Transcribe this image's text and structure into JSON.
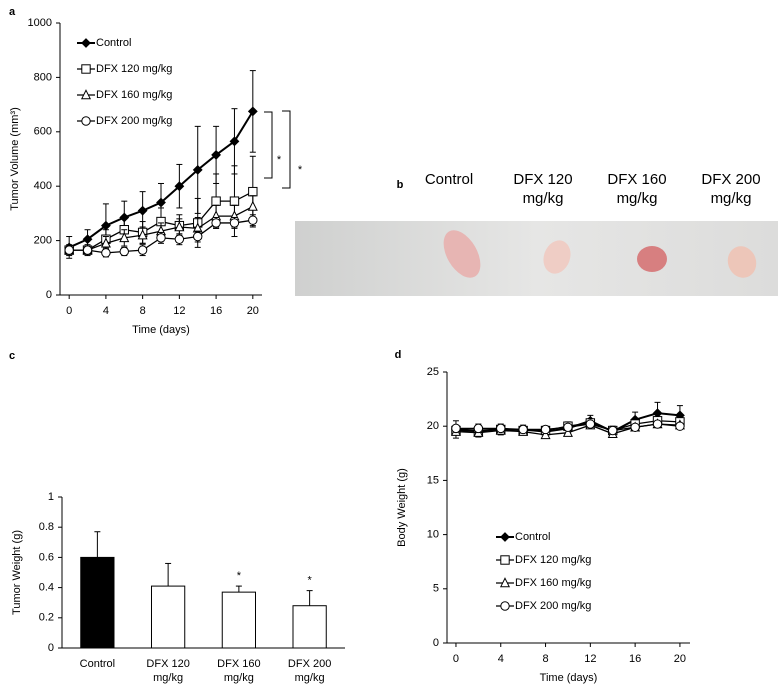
{
  "chart_data": [
    {
      "type": "line",
      "panel_label": "a",
      "x_label": "Time (days)",
      "y_label": "Tumor Volume (mm³)",
      "x": [
        0,
        2,
        4,
        6,
        8,
        10,
        12,
        14,
        16,
        18,
        20
      ],
      "xlim": [
        -1,
        21
      ],
      "xticks": [
        0,
        4,
        8,
        12,
        16,
        20
      ],
      "ylim": [
        0,
        1000
      ],
      "yticks": [
        0,
        200,
        400,
        600,
        800,
        1000
      ],
      "legend_position": "upper left",
      "series": [
        {
          "name": "Control",
          "marker": "diamond",
          "color": "#000000",
          "values": [
            175,
            205,
            255,
            285,
            310,
            340,
            400,
            460,
            515,
            565,
            675
          ],
          "errors": [
            40,
            35,
            80,
            60,
            70,
            70,
            80,
            160,
            105,
            120,
            150
          ]
        },
        {
          "name": "DFX 120 mg/kg",
          "marker": "square",
          "color": "#000000",
          "values": [
            165,
            165,
            205,
            240,
            230,
            270,
            255,
            265,
            345,
            345,
            380
          ],
          "errors": [
            20,
            20,
            35,
            40,
            40,
            50,
            40,
            90,
            100,
            130,
            130
          ]
        },
        {
          "name": "DFX 160 mg/kg",
          "marker": "triangle",
          "color": "#000000",
          "values": [
            165,
            165,
            190,
            210,
            220,
            235,
            250,
            245,
            290,
            290,
            325
          ],
          "errors": [
            15,
            15,
            25,
            30,
            30,
            30,
            30,
            40,
            40,
            40,
            40
          ]
        },
        {
          "name": "DFX 200 mg/kg",
          "marker": "circle",
          "color": "#000000",
          "values": [
            165,
            165,
            155,
            160,
            165,
            210,
            205,
            215,
            265,
            265,
            275
          ],
          "errors": [
            10,
            10,
            15,
            15,
            20,
            20,
            20,
            20,
            20,
            20,
            20
          ]
        }
      ],
      "annotations": [
        {
          "text": "*"
        },
        {
          "text": "*"
        }
      ]
    },
    {
      "type": "image",
      "panel_label": "b",
      "categories": [
        "Control",
        "DFX 120 mg/kg",
        "DFX 160 mg/kg",
        "DFX 200 mg/kg"
      ]
    },
    {
      "type": "bar",
      "panel_label": "c",
      "y_label": "Tumor Weight (g)",
      "categories": [
        "Control",
        "DFX 120 mg/kg",
        "DFX 160 mg/kg",
        "DFX 200 mg/kg"
      ],
      "values": [
        0.6,
        0.41,
        0.37,
        0.28
      ],
      "errors": [
        0.17,
        0.15,
        0.04,
        0.1
      ],
      "colors": [
        "#000000",
        "#ffffff",
        "#ffffff",
        "#ffffff"
      ],
      "ylim": [
        0,
        1
      ],
      "yticks": [
        0,
        0.2,
        0.4,
        0.6,
        0.8,
        1
      ],
      "annotations": [
        {
          "text": "*",
          "category": "DFX 160 mg/kg"
        },
        {
          "text": "*",
          "category": "DFX 200 mg/kg"
        }
      ]
    },
    {
      "type": "line",
      "panel_label": "d",
      "x_label": "Time (days)",
      "y_label": "Body Weight (g)",
      "x": [
        0,
        2,
        4,
        6,
        8,
        10,
        12,
        14,
        16,
        18,
        20
      ],
      "xlim": [
        -0.8,
        20.9
      ],
      "xticks": [
        0,
        4,
        8,
        12,
        16,
        20
      ],
      "ylim": [
        0,
        25
      ],
      "yticks": [
        0,
        5,
        10,
        15,
        20,
        25
      ],
      "legend_position": "lower left",
      "series": [
        {
          "name": "Control",
          "marker": "diamond",
          "color": "#000000",
          "values": [
            19.7,
            19.6,
            19.7,
            19.7,
            19.5,
            19.8,
            20.5,
            19.5,
            20.6,
            21.2,
            21.0
          ],
          "errors": [
            0.8,
            0.6,
            0.5,
            0.4,
            0.5,
            0.6,
            0.5,
            0.5,
            0.7,
            1.0,
            0.9
          ]
        },
        {
          "name": "DFX 120 mg/kg",
          "marker": "square",
          "color": "#000000",
          "values": [
            19.6,
            19.5,
            19.7,
            19.6,
            19.6,
            20.0,
            20.3,
            19.6,
            20.2,
            20.5,
            20.4
          ]
        },
        {
          "name": "DFX 160 mg/kg",
          "marker": "triangle",
          "color": "#000000",
          "values": [
            19.5,
            19.4,
            19.6,
            19.5,
            19.2,
            19.4,
            20.1,
            19.3,
            19.9,
            20.2,
            20.1
          ]
        },
        {
          "name": "DFX 200 mg/kg",
          "marker": "circle",
          "color": "#000000",
          "values": [
            19.8,
            19.8,
            19.8,
            19.7,
            19.7,
            19.9,
            20.2,
            19.6,
            19.9,
            20.2,
            20.0
          ]
        }
      ]
    }
  ]
}
